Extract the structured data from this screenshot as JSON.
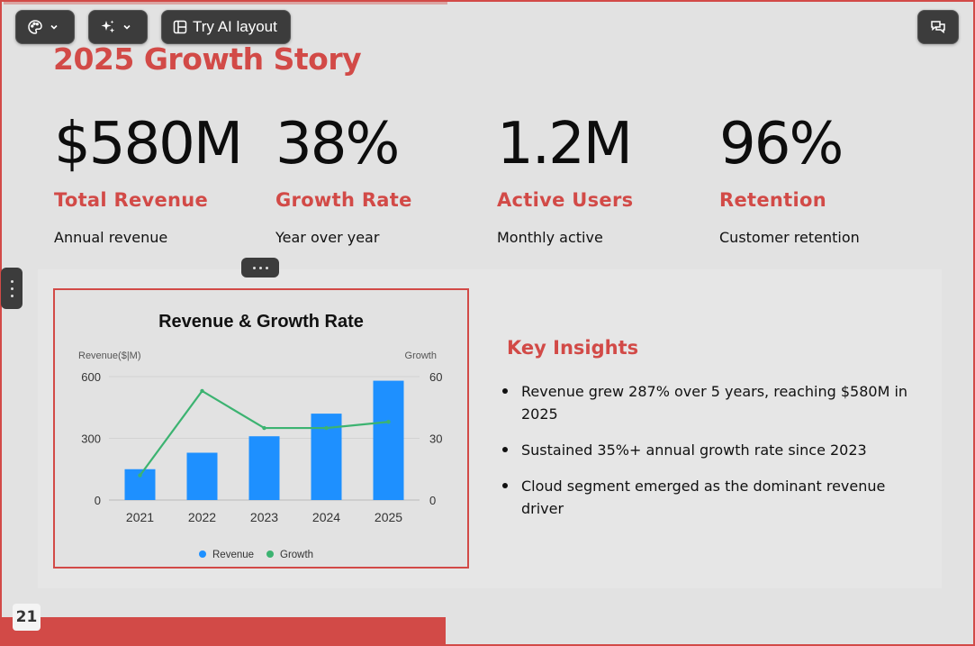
{
  "toolbar": {
    "theme_icon": "palette-icon",
    "ai_icon": "sparkle-icon",
    "ai_layout_label": "Try AI layout",
    "comments_icon": "comment-icon"
  },
  "slide": {
    "title": "2025 Growth Story",
    "page_number": "21",
    "accent_color": "#d24a47",
    "stats": [
      {
        "value": "$580M",
        "label": "Total Revenue",
        "desc": "Annual revenue"
      },
      {
        "value": "38%",
        "label": "Growth Rate",
        "desc": "Year over year"
      },
      {
        "value": "1.2M",
        "label": "Active Users",
        "desc": "Monthly active"
      },
      {
        "value": "96%",
        "label": "Retention",
        "desc": "Customer retention"
      }
    ],
    "insights": {
      "title": "Key Insights",
      "items": [
        "Revenue grew 287% over 5 years, reaching $580M in 2025",
        "Sustained 35%+ annual growth rate since 2023",
        "Cloud segment emerged as the dominant revenue driver"
      ]
    }
  },
  "chart_data": {
    "type": "bar",
    "title": "Revenue & Growth Rate",
    "categories": [
      "2021",
      "2022",
      "2023",
      "2024",
      "2025"
    ],
    "ylabel": "Revenue($|M)",
    "y2label": "Growth",
    "ylim": [
      0,
      600
    ],
    "y2lim": [
      0,
      60
    ],
    "yticks": [
      "0",
      "300",
      "600"
    ],
    "y2ticks": [
      "0",
      "30",
      "60"
    ],
    "grid": true,
    "legend": "bottom",
    "series": [
      {
        "name": "Revenue",
        "type": "bar",
        "axis": "left",
        "color": "#1e90ff",
        "values": [
          150,
          230,
          310,
          420,
          580
        ]
      },
      {
        "name": "Growth",
        "type": "line",
        "axis": "right",
        "color": "#3cb371",
        "values": [
          12,
          53,
          35,
          35,
          38
        ]
      }
    ]
  }
}
